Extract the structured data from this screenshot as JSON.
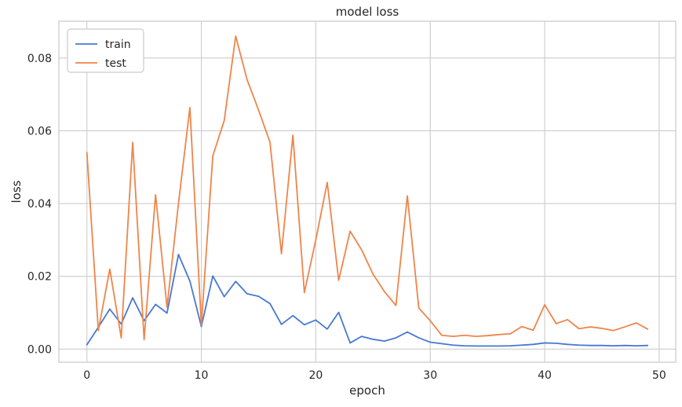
{
  "chart_data": {
    "type": "line",
    "title": "model loss",
    "xlabel": "epoch",
    "ylabel": "loss",
    "x": [
      0,
      1,
      2,
      3,
      4,
      5,
      6,
      7,
      8,
      9,
      10,
      11,
      12,
      13,
      14,
      15,
      16,
      17,
      18,
      19,
      20,
      21,
      22,
      23,
      24,
      25,
      26,
      27,
      28,
      29,
      30,
      31,
      32,
      33,
      34,
      35,
      36,
      37,
      38,
      39,
      40,
      41,
      42,
      43,
      44,
      45,
      46,
      47,
      48,
      49
    ],
    "series": [
      {
        "name": "train",
        "color": "#4878d0",
        "values": [
          0.0012,
          0.006,
          0.011,
          0.0069,
          0.0141,
          0.0078,
          0.0123,
          0.0099,
          0.026,
          0.0187,
          0.0062,
          0.0201,
          0.0144,
          0.0186,
          0.0152,
          0.0145,
          0.0125,
          0.0068,
          0.0092,
          0.0067,
          0.008,
          0.0055,
          0.0101,
          0.0017,
          0.0035,
          0.0027,
          0.0022,
          0.0031,
          0.0047,
          0.0031,
          0.0019,
          0.0015,
          0.0011,
          0.0009,
          0.00085,
          0.00085,
          0.00085,
          0.0009,
          0.0011,
          0.0013,
          0.0017,
          0.0016,
          0.0013,
          0.0011,
          0.001,
          0.001,
          0.0009,
          0.001,
          0.0009,
          0.001
        ]
      },
      {
        "name": "test",
        "color": "#ee854a",
        "values": [
          0.054,
          0.0051,
          0.022,
          0.0031,
          0.0568,
          0.0026,
          0.0424,
          0.0115,
          0.04,
          0.0664,
          0.0066,
          0.0531,
          0.0628,
          0.086,
          0.074,
          0.0657,
          0.0568,
          0.0262,
          0.0588,
          0.0155,
          0.03,
          0.0458,
          0.0189,
          0.0324,
          0.0273,
          0.0206,
          0.0158,
          0.012,
          0.0421,
          0.0113,
          0.0078,
          0.0038,
          0.0035,
          0.0038,
          0.0035,
          0.0037,
          0.004,
          0.0042,
          0.0062,
          0.0052,
          0.0122,
          0.007,
          0.0081,
          0.0056,
          0.0061,
          0.0057,
          0.0051,
          0.0061,
          0.0072,
          0.0055
        ]
      }
    ],
    "xlim": [
      -2.45,
      51.45
    ],
    "ylim": [
      -0.0036,
      0.0901
    ],
    "xticks": [
      0,
      10,
      20,
      30,
      40,
      50
    ],
    "yticks": [
      0,
      0.02,
      0.04,
      0.06,
      0.08
    ],
    "ytick_labels": [
      "0.00",
      "0.02",
      "0.04",
      "0.06",
      "0.08"
    ],
    "grid": true,
    "legend_position": "upper left",
    "colors": {
      "background": "#ffffff",
      "grid": "#cccccc",
      "axes_edge": "#cccccc",
      "text": "#262626"
    }
  }
}
